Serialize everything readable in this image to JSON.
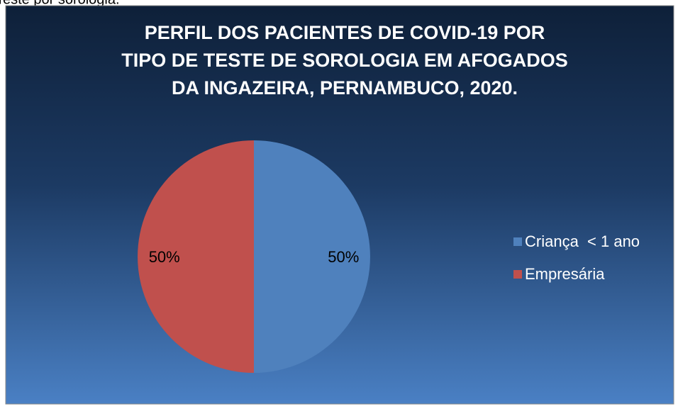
{
  "caption": "Teste por sorologia.",
  "chart_data": {
    "type": "pie",
    "title": [
      "PERFIL DOS PACIENTES DE COVID-19 POR",
      "TIPO DE TESTE DE SOROLOGIA EM AFOGADOS",
      "DA INGAZEIRA, PERNAMBUCO, 2020."
    ],
    "categories": [
      "Criança  < 1 ano",
      "Empresária"
    ],
    "values": [
      50,
      50
    ],
    "value_labels": [
      "50%",
      "50%"
    ],
    "colors": [
      "#4f81bd",
      "#c0504d"
    ],
    "legend": "right"
  }
}
